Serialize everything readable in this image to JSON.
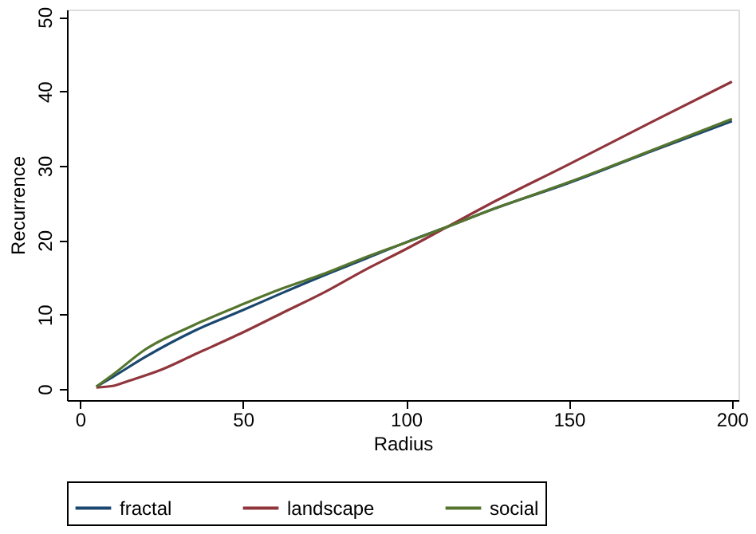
{
  "chart_data": {
    "type": "line",
    "xlabel": "Radius",
    "ylabel": "Recurrence",
    "xlim": [
      -4,
      202
    ],
    "ylim": [
      -1.5,
      51
    ],
    "xticks": [
      0,
      50,
      100,
      150,
      200
    ],
    "yticks": [
      0,
      10,
      20,
      30,
      40,
      50
    ],
    "grid": false,
    "legend": "bottom",
    "marker": "none",
    "line_style": "solid",
    "series": [
      {
        "name": "fractal",
        "color": "#1a476f",
        "x": [
          5,
          10,
          20,
          35,
          50,
          62,
          75,
          87,
          100,
          112.7,
          125,
          150,
          175,
          200
        ],
        "values": [
          0.3,
          1.6,
          4.3,
          7.8,
          10.6,
          12.9,
          15.3,
          17.4,
          19.7,
          21.8,
          23.9,
          27.7,
          31.9,
          36.0
        ]
      },
      {
        "name": "landscape",
        "color": "#90353b",
        "x": [
          5,
          10,
          15,
          25,
          35,
          50,
          62,
          75,
          87,
          100,
          112.7,
          125,
          150,
          175,
          200
        ],
        "values": [
          0.2,
          0.4,
          1.1,
          2.6,
          4.6,
          7.6,
          10.2,
          13.0,
          15.9,
          18.8,
          21.8,
          24.7,
          30.2,
          35.8,
          41.3
        ]
      },
      {
        "name": "social",
        "color": "#55752f",
        "x": [
          5,
          10,
          20,
          35,
          50,
          62,
          75,
          87,
          100,
          112.7,
          125,
          150,
          175,
          200
        ],
        "values": [
          0.3,
          1.9,
          5.3,
          8.6,
          11.4,
          13.5,
          15.5,
          17.6,
          19.7,
          21.8,
          23.9,
          27.8,
          32.0,
          36.3
        ]
      }
    ]
  }
}
